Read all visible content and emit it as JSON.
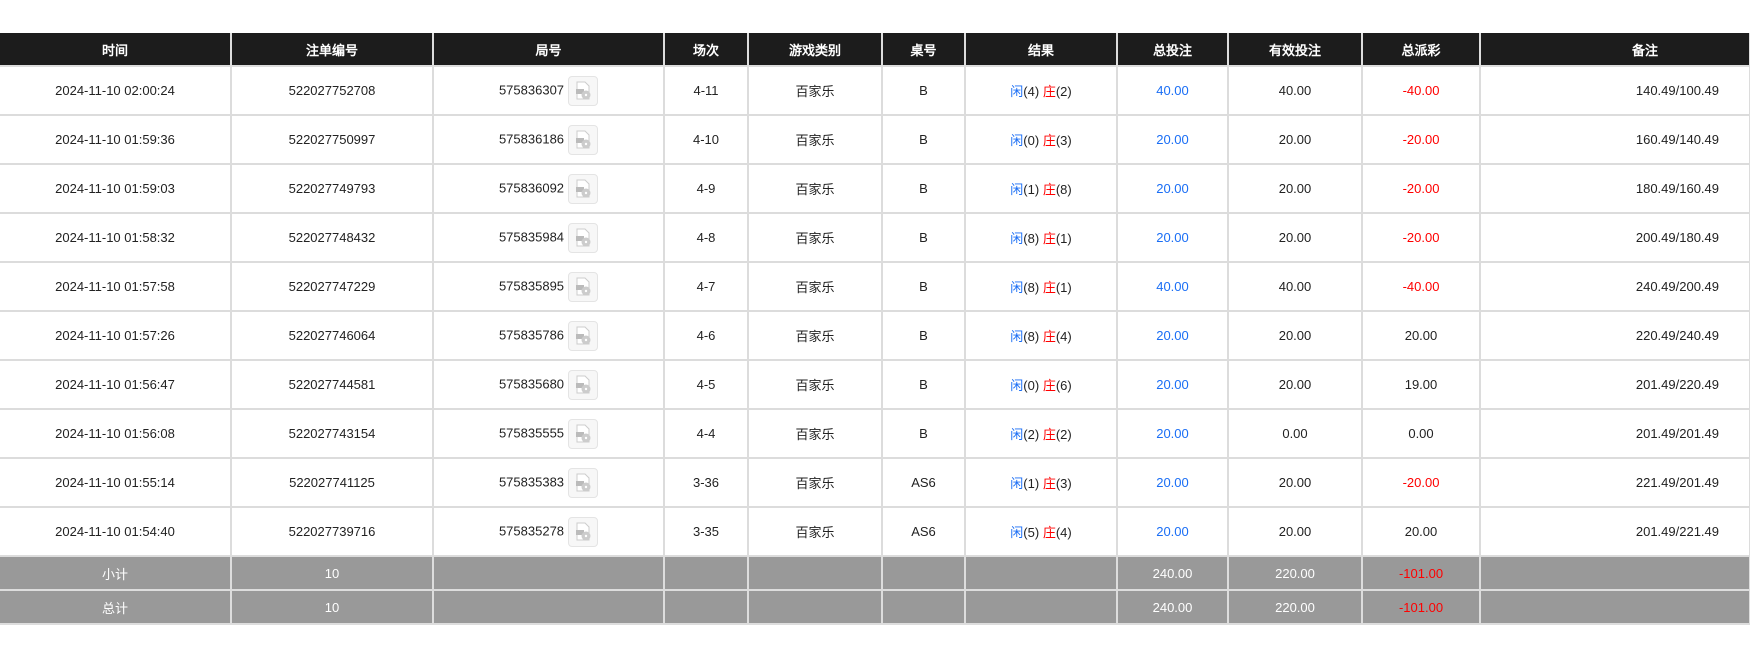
{
  "headers": [
    "时间",
    "注单编号",
    "局号",
    "场次",
    "游戏类别",
    "桌号",
    "结果",
    "总投注",
    "有效投注",
    "总派彩",
    "备注"
  ],
  "result_labels": {
    "player": "闲",
    "banker": "庄"
  },
  "colors": {
    "header_bg": "#1c1c1c",
    "blue": "#1a6ef5",
    "red": "#ff0000",
    "summary_bg": "#999999"
  },
  "rows": [
    {
      "time": "2024-11-10 02:00:24",
      "bet_id": "522027752708",
      "round": "575836307",
      "shoe": "4-11",
      "game": "百家乐",
      "table": "B",
      "player": "(4)",
      "banker": "(2)",
      "total_bet": "40.00",
      "valid_bet": "40.00",
      "payout": "-40.00",
      "payout_neg": true,
      "note": "140.49/100.49"
    },
    {
      "time": "2024-11-10 01:59:36",
      "bet_id": "522027750997",
      "round": "575836186",
      "shoe": "4-10",
      "game": "百家乐",
      "table": "B",
      "player": "(0)",
      "banker": "(3)",
      "total_bet": "20.00",
      "valid_bet": "20.00",
      "payout": "-20.00",
      "payout_neg": true,
      "note": "160.49/140.49"
    },
    {
      "time": "2024-11-10 01:59:03",
      "bet_id": "522027749793",
      "round": "575836092",
      "shoe": "4-9",
      "game": "百家乐",
      "table": "B",
      "player": "(1)",
      "banker": "(8)",
      "total_bet": "20.00",
      "valid_bet": "20.00",
      "payout": "-20.00",
      "payout_neg": true,
      "note": "180.49/160.49"
    },
    {
      "time": "2024-11-10 01:58:32",
      "bet_id": "522027748432",
      "round": "575835984",
      "shoe": "4-8",
      "game": "百家乐",
      "table": "B",
      "player": "(8)",
      "banker": "(1)",
      "total_bet": "20.00",
      "valid_bet": "20.00",
      "payout": "-20.00",
      "payout_neg": true,
      "note": "200.49/180.49"
    },
    {
      "time": "2024-11-10 01:57:58",
      "bet_id": "522027747229",
      "round": "575835895",
      "shoe": "4-7",
      "game": "百家乐",
      "table": "B",
      "player": "(8)",
      "banker": "(1)",
      "total_bet": "40.00",
      "valid_bet": "40.00",
      "payout": "-40.00",
      "payout_neg": true,
      "note": "240.49/200.49"
    },
    {
      "time": "2024-11-10 01:57:26",
      "bet_id": "522027746064",
      "round": "575835786",
      "shoe": "4-6",
      "game": "百家乐",
      "table": "B",
      "player": "(8)",
      "banker": "(4)",
      "total_bet": "20.00",
      "valid_bet": "20.00",
      "payout": "20.00",
      "payout_neg": false,
      "note": "220.49/240.49"
    },
    {
      "time": "2024-11-10 01:56:47",
      "bet_id": "522027744581",
      "round": "575835680",
      "shoe": "4-5",
      "game": "百家乐",
      "table": "B",
      "player": "(0)",
      "banker": "(6)",
      "total_bet": "20.00",
      "valid_bet": "20.00",
      "payout": "19.00",
      "payout_neg": false,
      "note": "201.49/220.49"
    },
    {
      "time": "2024-11-10 01:56:08",
      "bet_id": "522027743154",
      "round": "575835555",
      "shoe": "4-4",
      "game": "百家乐",
      "table": "B",
      "player": "(2)",
      "banker": "(2)",
      "total_bet": "20.00",
      "valid_bet": "0.00",
      "payout": "0.00",
      "payout_neg": false,
      "note": "201.49/201.49"
    },
    {
      "time": "2024-11-10 01:55:14",
      "bet_id": "522027741125",
      "round": "575835383",
      "shoe": "3-36",
      "game": "百家乐",
      "table": "AS6",
      "player": "(1)",
      "banker": "(3)",
      "total_bet": "20.00",
      "valid_bet": "20.00",
      "payout": "-20.00",
      "payout_neg": true,
      "note": "221.49/201.49"
    },
    {
      "time": "2024-11-10 01:54:40",
      "bet_id": "522027739716",
      "round": "575835278",
      "shoe": "3-35",
      "game": "百家乐",
      "table": "AS6",
      "player": "(5)",
      "banker": "(4)",
      "total_bet": "20.00",
      "valid_bet": "20.00",
      "payout": "20.00",
      "payout_neg": false,
      "note": "201.49/221.49"
    }
  ],
  "summary": [
    {
      "label": "小计",
      "count": "10",
      "total_bet": "240.00",
      "valid_bet": "220.00",
      "payout": "-101.00"
    },
    {
      "label": "总计",
      "count": "10",
      "total_bet": "240.00",
      "valid_bet": "220.00",
      "payout": "-101.00"
    }
  ]
}
